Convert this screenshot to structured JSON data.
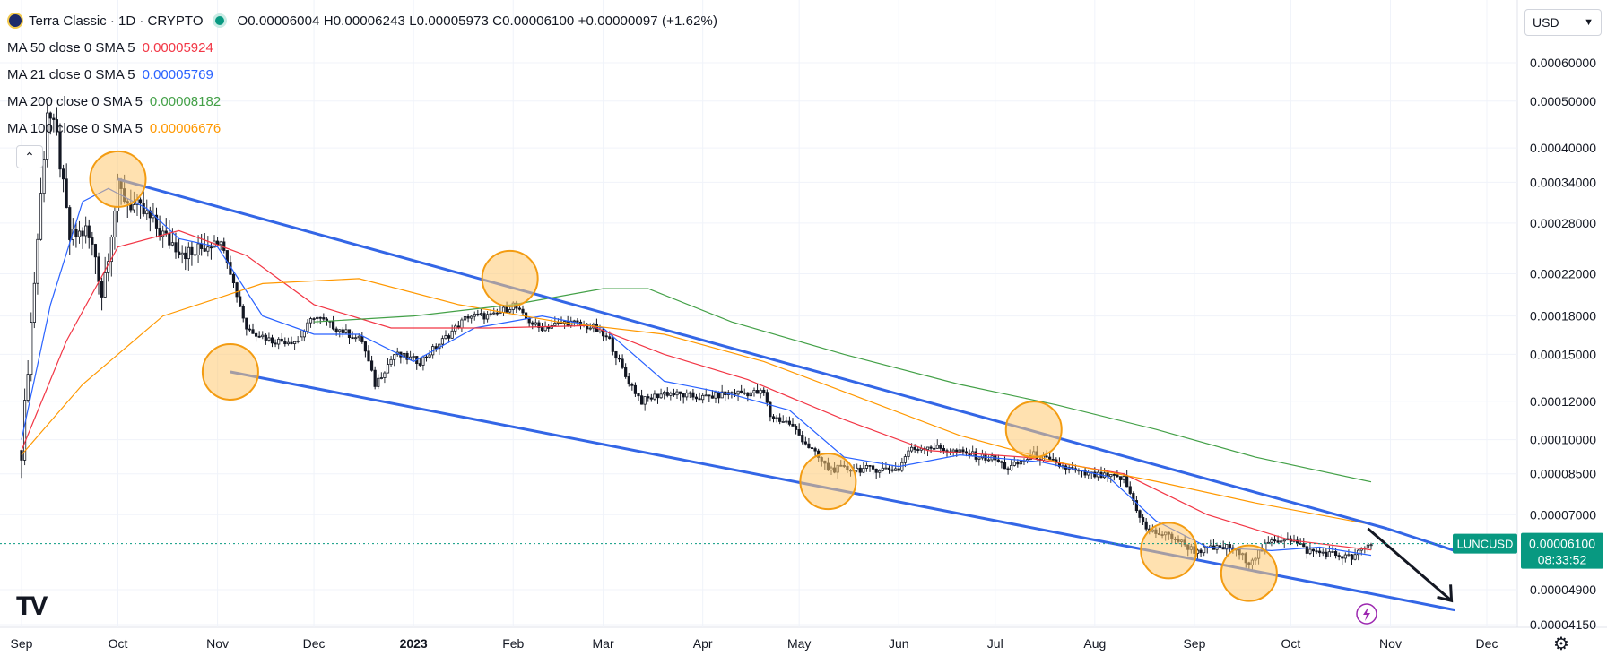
{
  "header": {
    "symbol": "Terra Classic · 1D · CRYPTO",
    "ohlc": "O0.00006004 H0.00006243 L0.00005973 C0.00006100 +0.00000097 (+1.62%)"
  },
  "moving_averages": [
    {
      "label": "MA 50 close 0 SMA 5",
      "value": "0.00005924",
      "color": "#f23645"
    },
    {
      "label": "MA 21 close 0 SMA 5",
      "value": "0.00005769",
      "color": "#2962ff"
    },
    {
      "label": "MA 200 close 0 SMA 5",
      "value": "0.00008182",
      "color": "#43a047"
    },
    {
      "label": "MA 100 close 0 SMA 5",
      "value": "0.00006676",
      "color": "#ff9800"
    }
  ],
  "currency": {
    "label": "USD",
    "icon": "chevron-down-icon"
  },
  "price_tags": {
    "symbol_tag": "LUNCUSD",
    "last_price": "0.00006100",
    "countdown": "08:33:52",
    "color": "#089981"
  },
  "chart_data": {
    "type": "candlestick",
    "scale": "log",
    "x_ticks": [
      "Sep",
      "Oct",
      "Nov",
      "Dec",
      "2023",
      "Feb",
      "Mar",
      "Apr",
      "May",
      "Jun",
      "Jul",
      "Aug",
      "Sep",
      "Oct",
      "Nov",
      "Dec"
    ],
    "x_tick_dates": [
      "2022-09",
      "2022-10",
      "2022-11",
      "2022-12",
      "2023-01",
      "2023-02",
      "2023-03",
      "2023-04",
      "2023-05",
      "2023-06",
      "2023-07",
      "2023-08",
      "2023-09",
      "2023-10",
      "2023-11",
      "2023-12"
    ],
    "y_ticks": [
      "0.00060000",
      "0.00050000",
      "0.00040000",
      "0.00034000",
      "0.00028000",
      "0.00022000",
      "0.00018000",
      "0.00015000",
      "0.00012000",
      "0.00010000",
      "0.00008500",
      "0.00007000",
      "0.00004900",
      "0.00004150"
    ],
    "y_tick_values": [
      0.0006,
      0.0005,
      0.0004,
      0.00034,
      0.00028,
      0.00022,
      0.00018,
      0.00015,
      0.00012,
      0.0001,
      8.5e-05,
      7e-05,
      4.9e-05,
      4.15e-05
    ],
    "price_path": [
      [
        "2022-09-01",
        9.5e-05
      ],
      [
        "2022-09-06",
        0.00026
      ],
      [
        "2022-09-09",
        0.00048
      ],
      [
        "2022-09-12",
        0.00042
      ],
      [
        "2022-09-16",
        0.00026
      ],
      [
        "2022-09-21",
        0.00027
      ],
      [
        "2022-09-24",
        0.00024
      ],
      [
        "2022-09-26",
        0.0002
      ],
      [
        "2022-10-01",
        0.00033
      ],
      [
        "2022-10-04",
        0.00031
      ],
      [
        "2022-10-10",
        0.00029
      ],
      [
        "2022-10-16",
        0.00026
      ],
      [
        "2022-10-24",
        0.00024
      ],
      [
        "2022-10-31",
        0.00026
      ],
      [
        "2022-11-03",
        0.00025
      ],
      [
        "2022-11-06",
        0.00021
      ],
      [
        "2022-11-10",
        0.00017
      ],
      [
        "2022-11-18",
        0.00016
      ],
      [
        "2022-11-26",
        0.00016
      ],
      [
        "2022-12-01",
        0.00018
      ],
      [
        "2022-12-08",
        0.00017
      ],
      [
        "2022-12-16",
        0.00016
      ],
      [
        "2022-12-20",
        0.00013
      ],
      [
        "2022-12-26",
        0.00015
      ],
      [
        "2023-01-03",
        0.000145
      ],
      [
        "2023-01-10",
        0.00016
      ],
      [
        "2023-01-18",
        0.00018
      ],
      [
        "2023-01-26",
        0.00018
      ],
      [
        "2023-02-01",
        0.00019
      ],
      [
        "2023-02-04",
        0.00018
      ],
      [
        "2023-02-09",
        0.00017
      ],
      [
        "2023-02-18",
        0.000175
      ],
      [
        "2023-02-26",
        0.00017
      ],
      [
        "2023-03-03",
        0.00016
      ],
      [
        "2023-03-08",
        0.000135
      ],
      [
        "2023-03-13",
        0.00012
      ],
      [
        "2023-03-20",
        0.000125
      ],
      [
        "2023-04-01",
        0.000122
      ],
      [
        "2023-04-10",
        0.000125
      ],
      [
        "2023-04-20",
        0.000125
      ],
      [
        "2023-04-22",
        0.000112
      ],
      [
        "2023-04-28",
        0.000108
      ],
      [
        "2023-05-05",
        9.5e-05
      ],
      [
        "2023-05-10",
        8.7e-05
      ],
      [
        "2023-05-22",
        8.7e-05
      ],
      [
        "2023-06-01",
        8.7e-05
      ],
      [
        "2023-06-04",
        9.5e-05
      ],
      [
        "2023-06-10",
        9.7e-05
      ],
      [
        "2023-06-20",
        9.4e-05
      ],
      [
        "2023-07-01",
        9.1e-05
      ],
      [
        "2023-07-05",
        8.7e-05
      ],
      [
        "2023-07-13",
        9.3e-05
      ],
      [
        "2023-07-20",
        8.9e-05
      ],
      [
        "2023-07-28",
        8.5e-05
      ],
      [
        "2023-08-10",
        8.3e-05
      ],
      [
        "2023-08-17",
        6.5e-05
      ],
      [
        "2023-08-25",
        6.3e-05
      ],
      [
        "2023-09-01",
        5.9e-05
      ],
      [
        "2023-09-12",
        6e-05
      ],
      [
        "2023-09-18",
        5.6e-05
      ],
      [
        "2023-09-24",
        6.1e-05
      ],
      [
        "2023-09-30",
        6.3e-05
      ],
      [
        "2023-10-06",
        5.9e-05
      ],
      [
        "2023-10-14",
        5.8e-05
      ],
      [
        "2023-10-20",
        5.7e-05
      ],
      [
        "2023-10-26",
        6.1e-05
      ]
    ],
    "ma_series": [
      {
        "name": "MA 21",
        "color": "#2962ff",
        "points": [
          [
            "2022-09-01",
            0.0001
          ],
          [
            "2022-09-10",
            0.00019
          ],
          [
            "2022-09-20",
            0.00031
          ],
          [
            "2022-09-28",
            0.00033
          ],
          [
            "2022-10-10",
            0.0003
          ],
          [
            "2022-10-20",
            0.00026
          ],
          [
            "2022-11-01",
            0.00025
          ],
          [
            "2022-11-15",
            0.00018
          ],
          [
            "2022-12-01",
            0.000165
          ],
          [
            "2022-12-15",
            0.000165
          ],
          [
            "2023-01-01",
            0.000145
          ],
          [
            "2023-01-20",
            0.00017
          ],
          [
            "2023-02-10",
            0.00018
          ],
          [
            "2023-03-01",
            0.00017
          ],
          [
            "2023-03-20",
            0.000132
          ],
          [
            "2023-04-10",
            0.000124
          ],
          [
            "2023-04-28",
            0.000115
          ],
          [
            "2023-05-15",
            9.2e-05
          ],
          [
            "2023-06-01",
            8.8e-05
          ],
          [
            "2023-06-20",
            9.3e-05
          ],
          [
            "2023-07-15",
            9e-05
          ],
          [
            "2023-08-05",
            8.4e-05
          ],
          [
            "2023-08-20",
            6.8e-05
          ],
          [
            "2023-09-05",
            6e-05
          ],
          [
            "2023-09-25",
            5.9e-05
          ],
          [
            "2023-10-10",
            6e-05
          ],
          [
            "2023-10-26",
            5.77e-05
          ]
        ]
      },
      {
        "name": "MA 50",
        "color": "#f23645",
        "points": [
          [
            "2022-09-01",
            9.5e-05
          ],
          [
            "2022-09-15",
            0.00016
          ],
          [
            "2022-10-01",
            0.00025
          ],
          [
            "2022-10-20",
            0.00027
          ],
          [
            "2022-11-10",
            0.00024
          ],
          [
            "2022-12-01",
            0.00019
          ],
          [
            "2022-12-25",
            0.00017
          ],
          [
            "2023-01-25",
            0.00017
          ],
          [
            "2023-02-25",
            0.000172
          ],
          [
            "2023-03-20",
            0.00015
          ],
          [
            "2023-04-15",
            0.000133
          ],
          [
            "2023-05-15",
            0.00011
          ],
          [
            "2023-06-10",
            9.5e-05
          ],
          [
            "2023-07-10",
            9.2e-05
          ],
          [
            "2023-08-10",
            8.5e-05
          ],
          [
            "2023-09-05",
            7e-05
          ],
          [
            "2023-10-01",
            6.2e-05
          ],
          [
            "2023-10-26",
            5.92e-05
          ]
        ]
      },
      {
        "name": "MA 100",
        "color": "#ff9800",
        "points": [
          [
            "2022-09-01",
            9.3e-05
          ],
          [
            "2022-09-20",
            0.00013
          ],
          [
            "2022-10-15",
            0.00018
          ],
          [
            "2022-11-15",
            0.00021
          ],
          [
            "2022-12-15",
            0.000215
          ],
          [
            "2023-01-15",
            0.00019
          ],
          [
            "2023-02-15",
            0.000175
          ],
          [
            "2023-03-20",
            0.000165
          ],
          [
            "2023-04-20",
            0.000145
          ],
          [
            "2023-05-20",
            0.000122
          ],
          [
            "2023-06-20",
            0.000102
          ],
          [
            "2023-07-20",
            9e-05
          ],
          [
            "2023-08-20",
            8.2e-05
          ],
          [
            "2023-09-20",
            7.4e-05
          ],
          [
            "2023-10-26",
            6.68e-05
          ]
        ]
      },
      {
        "name": "MA 200",
        "color": "#43a047",
        "points": [
          [
            "2022-12-01",
            0.000175
          ],
          [
            "2023-01-01",
            0.00018
          ],
          [
            "2023-02-01",
            0.00019
          ],
          [
            "2023-03-01",
            0.000205
          ],
          [
            "2023-03-15",
            0.000205
          ],
          [
            "2023-04-10",
            0.000175
          ],
          [
            "2023-05-15",
            0.00015
          ],
          [
            "2023-06-20",
            0.00013
          ],
          [
            "2023-07-20",
            0.000118
          ],
          [
            "2023-08-20",
            0.000105
          ],
          [
            "2023-09-20",
            9.2e-05
          ],
          [
            "2023-10-26",
            8.18e-05
          ]
        ]
      }
    ],
    "drawings": {
      "channel_lines": [
        {
          "name": "upper-trendline",
          "color": "#3366e6",
          "from": [
            "2022-10-01",
            0.000345
          ],
          "to": [
            "2023-10-31",
            6.55e-05
          ]
        },
        {
          "name": "upper-trendline-extension",
          "color": "#3366e6",
          "from": [
            "2023-10-31",
            6.55e-05
          ],
          "to": [
            "2023-11-21",
            5.9e-05
          ]
        },
        {
          "name": "lower-trendline",
          "color": "#3366e6",
          "from": [
            "2022-11-05",
            0.000138
          ],
          "to": [
            "2023-11-21",
            4.45e-05
          ]
        }
      ],
      "touch_circles": [
        {
          "date": "2022-10-01",
          "value": 0.000345,
          "color": "#ffc870"
        },
        {
          "date": "2022-11-05",
          "value": 0.000138,
          "color": "#ffc870"
        },
        {
          "date": "2023-01-31",
          "value": 0.000215,
          "color": "#ffc870"
        },
        {
          "date": "2023-05-10",
          "value": 8.2e-05,
          "color": "#ffc870"
        },
        {
          "date": "2023-07-13",
          "value": 0.000105,
          "color": "#ffc870"
        },
        {
          "date": "2023-08-24",
          "value": 5.9e-05,
          "color": "#ffc870"
        },
        {
          "date": "2023-09-18",
          "value": 5.3e-05,
          "color": "#ffc870"
        }
      ],
      "arrow": {
        "from": [
          "2023-10-25",
          6.55e-05
        ],
        "to": [
          "2023-11-20",
          4.65e-05
        ],
        "color": "#131722"
      }
    },
    "grid": true
  }
}
